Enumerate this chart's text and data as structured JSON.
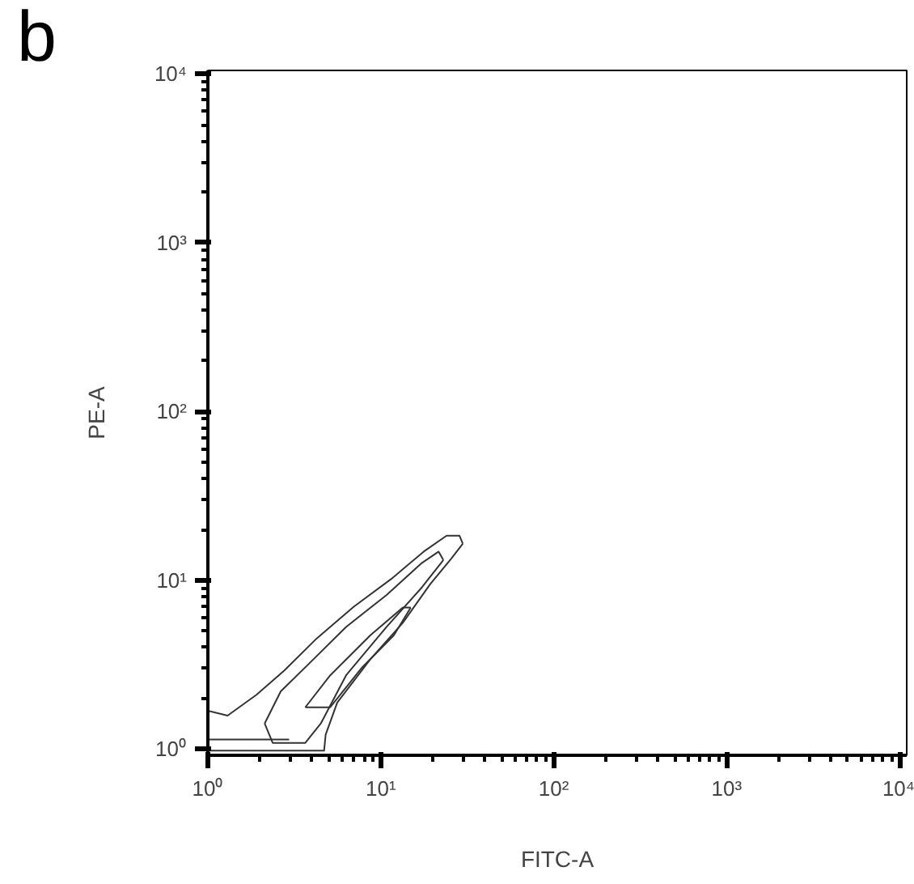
{
  "chart_data": {
    "type": "line",
    "title": "b",
    "xlabel": "FITC-A",
    "ylabel": "PE-A",
    "log": "xy",
    "grid": false,
    "marker": "none",
    "line_style": "solid",
    "xlim": [
      1,
      11000
    ],
    "ylim": [
      0.92,
      10500
    ],
    "xticks": [
      {
        "value": 1,
        "label": "10⁰"
      },
      {
        "value": 10,
        "label": "10¹"
      },
      {
        "value": 100,
        "label": "10²"
      },
      {
        "value": 1000,
        "label": "10³"
      },
      {
        "value": 10000,
        "label": "10⁴"
      }
    ],
    "yticks": [
      {
        "value": 1,
        "label": "10⁰"
      },
      {
        "value": 10,
        "label": "10¹"
      },
      {
        "value": 100,
        "label": "10²"
      },
      {
        "value": 1000,
        "label": "10³"
      },
      {
        "value": 10000,
        "label": "10⁴"
      }
    ],
    "series": [
      {
        "color": "#333333",
        "x": [
          1,
          1.3,
          1.91,
          2.76,
          4.26,
          7.0,
          11.5,
          17.7,
          24.0,
          28.5,
          29.8
        ],
        "values": [
          1.69,
          1.58,
          2.1,
          2.92,
          4.53,
          7.0,
          10.2,
          14.8,
          18.4,
          18.4,
          16.5
        ]
      },
      {
        "color": "#333333",
        "x": [
          1,
          4.7,
          4.8,
          5.6,
          8.7,
          13.4,
          19.3,
          25.6,
          29.8
        ],
        "values": [
          0.98,
          0.98,
          1.22,
          1.89,
          3.41,
          5.6,
          9.5,
          13.5,
          16.5
        ]
      },
      {
        "color": "#333333",
        "x": [
          2.13,
          2.64,
          4.08,
          6.3,
          10.8,
          17.3,
          21.6,
          23.0
        ],
        "values": [
          1.42,
          2.2,
          3.41,
          5.3,
          8.2,
          12.7,
          14.8,
          13.2
        ]
      },
      {
        "color": "#333333",
        "x": [
          2.13,
          2.37,
          3.66,
          4.5,
          6.3,
          10.8,
          17.3,
          23.0
        ],
        "values": [
          1.42,
          1.09,
          1.09,
          1.42,
          2.74,
          5.3,
          9.1,
          13.2
        ]
      },
      {
        "color": "#333333",
        "x": [
          3.66,
          5.1,
          8.7,
          13.4,
          14.9
        ],
        "values": [
          1.77,
          2.74,
          4.73,
          6.9,
          6.9
        ]
      },
      {
        "color": "#333333",
        "x": [
          3.66,
          5.1,
          7.8,
          11.9,
          14.9
        ],
        "values": [
          1.77,
          1.77,
          3.05,
          4.73,
          6.9
        ]
      },
      {
        "color": "#333333",
        "x": [
          1.02,
          2.95
        ],
        "values": [
          1.14,
          1.14
        ]
      }
    ]
  }
}
